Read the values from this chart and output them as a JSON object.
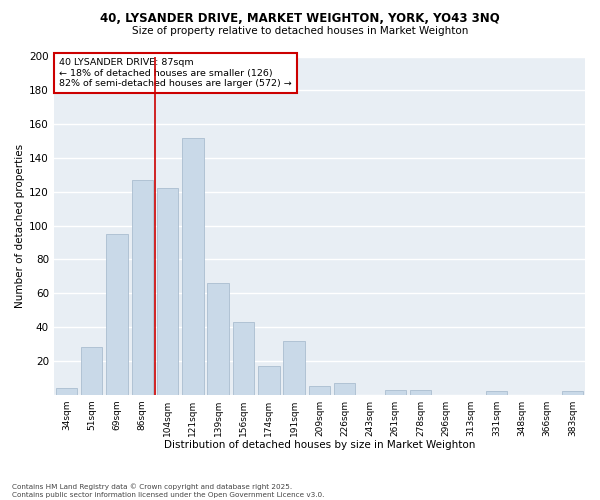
{
  "title1": "40, LYSANDER DRIVE, MARKET WEIGHTON, YORK, YO43 3NQ",
  "title2": "Size of property relative to detached houses in Market Weighton",
  "xlabel": "Distribution of detached houses by size in Market Weighton",
  "ylabel": "Number of detached properties",
  "bar_color": "#c9d9e8",
  "bar_edgecolor": "#aabdd0",
  "categories": [
    "34sqm",
    "51sqm",
    "69sqm",
    "86sqm",
    "104sqm",
    "121sqm",
    "139sqm",
    "156sqm",
    "174sqm",
    "191sqm",
    "209sqm",
    "226sqm",
    "243sqm",
    "261sqm",
    "278sqm",
    "296sqm",
    "313sqm",
    "331sqm",
    "348sqm",
    "366sqm",
    "383sqm"
  ],
  "values": [
    4,
    28,
    95,
    127,
    122,
    152,
    66,
    43,
    17,
    32,
    5,
    7,
    0,
    3,
    3,
    0,
    0,
    2,
    0,
    0,
    2
  ],
  "vline_x": 3.5,
  "vline_color": "#cc0000",
  "annotation_title": "40 LYSANDER DRIVE: 87sqm",
  "annotation_line1": "← 18% of detached houses are smaller (126)",
  "annotation_line2": "82% of semi-detached houses are larger (572) →",
  "annotation_box_facecolor": "#ffffff",
  "annotation_box_edgecolor": "#cc0000",
  "ylim": [
    0,
    200
  ],
  "yticks": [
    0,
    20,
    40,
    60,
    80,
    100,
    120,
    140,
    160,
    180,
    200
  ],
  "fig_facecolor": "#ffffff",
  "plot_facecolor": "#e8eef4",
  "grid_color": "#ffffff",
  "footnote": "Contains HM Land Registry data © Crown copyright and database right 2025.\nContains public sector information licensed under the Open Government Licence v3.0."
}
